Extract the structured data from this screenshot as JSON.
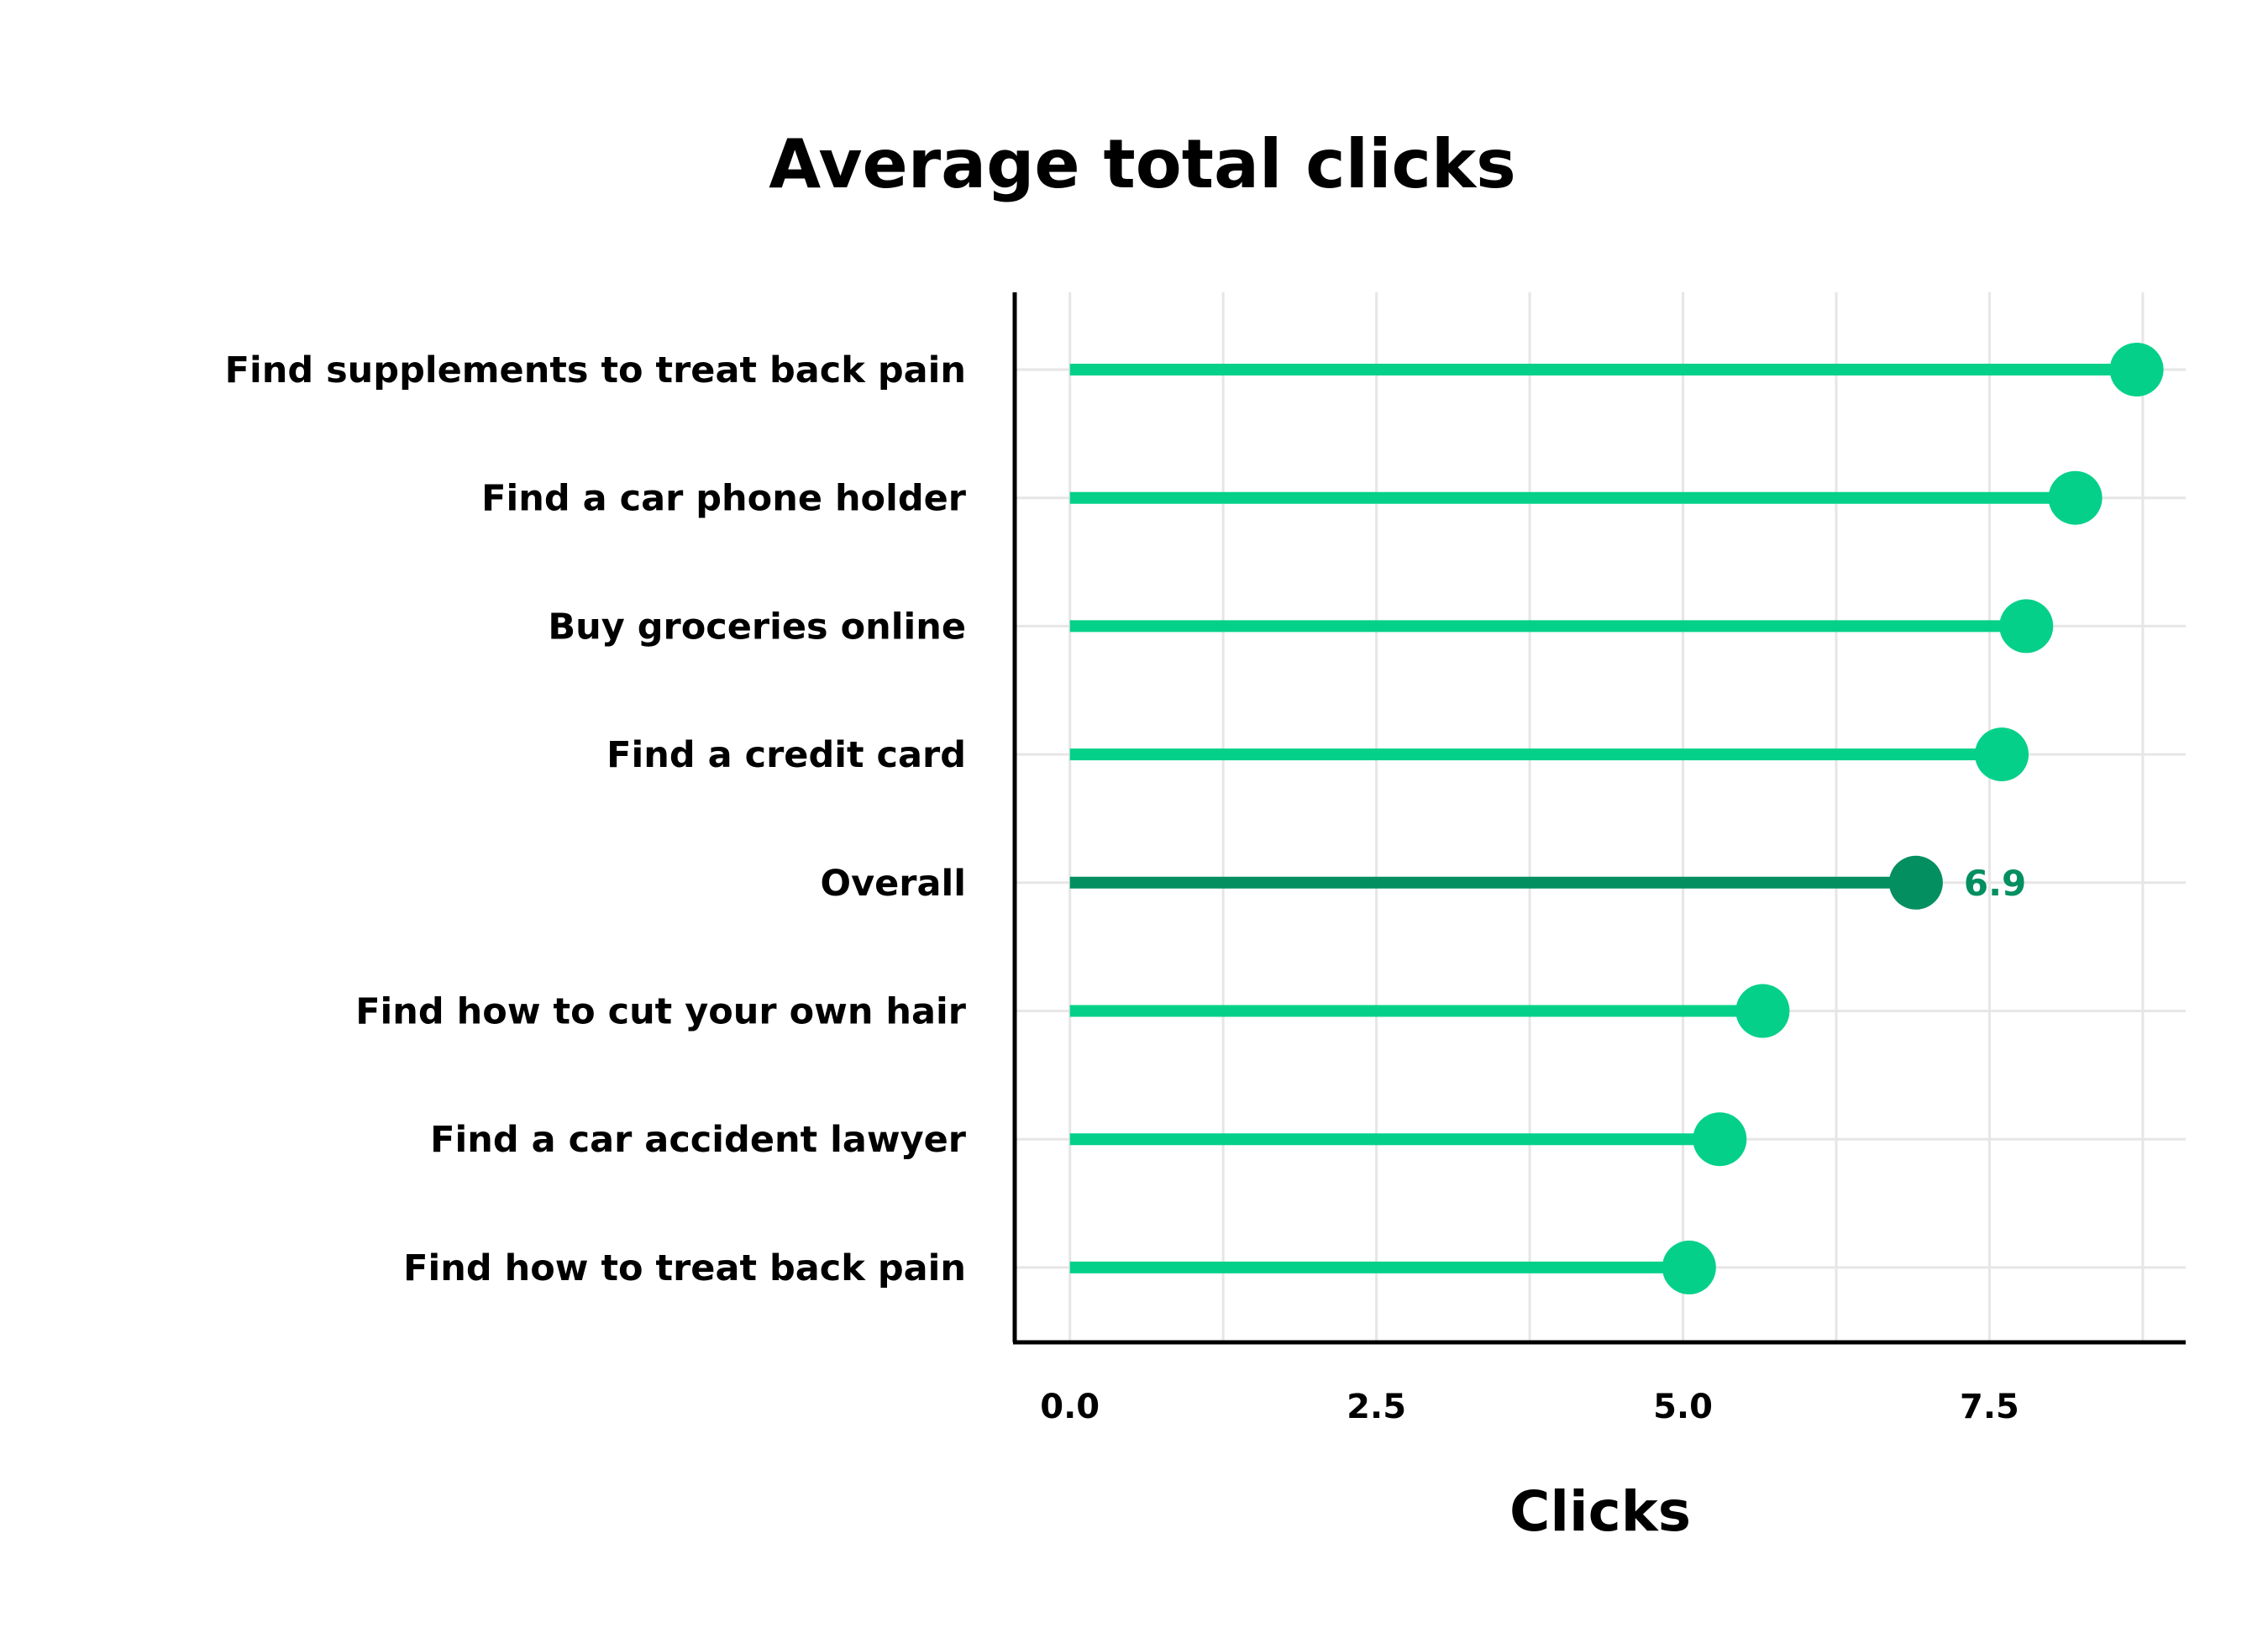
{
  "chart_data": {
    "type": "lollipop",
    "title": "Average total clicks",
    "xlabel": "Clicks",
    "ylabel": "",
    "xlim": [
      -0.45,
      9.1
    ],
    "xticks": [
      0.0,
      2.5,
      5.0,
      7.5
    ],
    "xtick_labels": [
      "0.0",
      "2.5",
      "5.0",
      "7.5"
    ],
    "grid": true,
    "categories": [
      "Find supplements to treat back pain",
      "Find a car phone holder",
      "Buy groceries online",
      "Find a credit card",
      "Overall",
      "Find how to cut your own hair",
      "Find a car accident lawyer",
      "Find how to treat back pain"
    ],
    "values": [
      8.7,
      8.2,
      7.8,
      7.6,
      6.9,
      5.65,
      5.3,
      5.05
    ],
    "highlight": {
      "category": "Overall",
      "value_label": "6.9"
    },
    "colors": {
      "primary": "#05d08a",
      "highlight": "#038f5f",
      "grid": "#e6e6e6",
      "axis": "#000000"
    }
  }
}
